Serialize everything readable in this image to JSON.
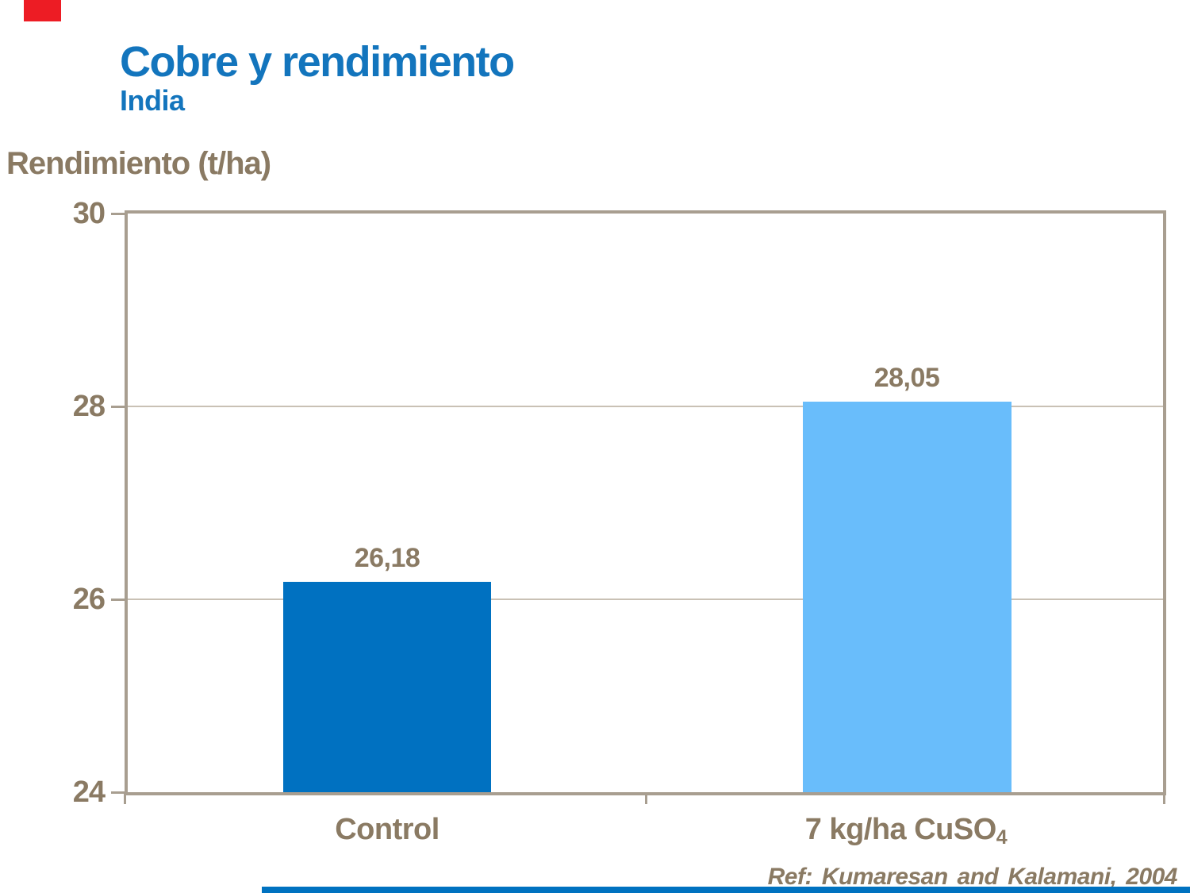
{
  "slide": {
    "title": "Cobre y rendimiento",
    "subtitle": "India",
    "reference": "Ref: Kumaresan and Kalamani, 2004"
  },
  "colors": {
    "title_blue": "#1375BD",
    "text_brown": "#8A7A63",
    "frame_beige": "#A89E90",
    "gridline_beige": "#C9C1B5",
    "bar_control_blue": "#0071C1",
    "bar_treated_light_blue": "#69BDFB",
    "accent_red": "#ED1C24",
    "footer_blue": "#0072C0"
  },
  "chart_data": {
    "type": "bar",
    "title": "Cobre y rendimiento (India)",
    "xlabel": "",
    "ylabel": "Rendimiento (t/ha)",
    "ylim": [
      24,
      30
    ],
    "yticks": [
      30,
      28,
      26,
      24
    ],
    "ytick_labels": [
      "30",
      "28",
      "26",
      "24"
    ],
    "grid": true,
    "legend": false,
    "categories": [
      "Control",
      "7 kg/ha CuSO4"
    ],
    "category_parts": [
      {
        "main": "Control",
        "sub": ""
      },
      {
        "main": "7 kg/ha CuSO",
        "sub": "4"
      }
    ],
    "values": [
      26.18,
      28.05
    ],
    "value_labels": [
      "26,18",
      "28,05"
    ],
    "bar_colors": [
      "#0071C1",
      "#69BDFB"
    ]
  }
}
